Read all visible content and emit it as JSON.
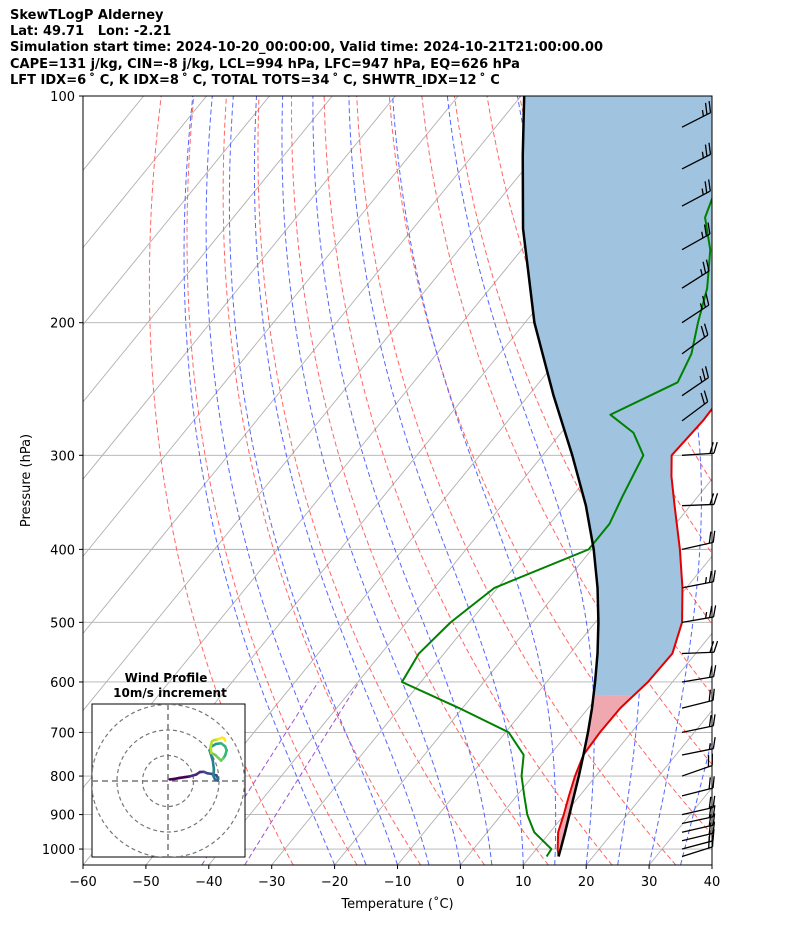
{
  "header": {
    "line1": "SkewTLogP Alderney",
    "line2": "Lat: 49.71   Lon: -2.21",
    "line3": "Simulation start time: 2024-10-20_00:00:00, Valid time: 2024-10-21T21:00:00.00",
    "line4": "CAPE=131 j/kg, CIN=-8 j/kg, LCL=994 hPa, LFC=947 hPa, EQ=626 hPa",
    "line5": "LFT IDX=6 ˚ C, K IDX=8 ˚ C, TOTAL TOTS=34 ˚ C, SHWTR_IDX=12 ˚ C"
  },
  "chart_data": [
    {
      "type": "line",
      "subtype": "skew-T log-P diagram",
      "xlabel": "Temperature (˚C)",
      "ylabel": "Pressure (hPa)",
      "xlim": [
        -60,
        40
      ],
      "ylim": [
        1050,
        100
      ],
      "y_scale": "log",
      "grid": true,
      "x_ticks": [
        "−60",
        "−50",
        "−40",
        "−30",
        "−20",
        "−10",
        "0",
        "10",
        "20",
        "30",
        "40"
      ],
      "y_ticks": [
        "100",
        "200",
        "300",
        "400",
        "500",
        "600",
        "700",
        "800",
        "900",
        "1000"
      ],
      "colors": {
        "temperature": "#e00000",
        "dewpoint": "#008000",
        "parcel": "#000000",
        "cape_fill": "#a0c4e0",
        "cin_fill": "#f0a8b0",
        "dry_adiabats": "#ff6666",
        "moist_adiabats": "#5566ff",
        "mixing_ratio": "#a050d0",
        "isotherms": "#b0b0b0"
      },
      "series": [
        {
          "key": "temperature",
          "points": [
            [
              1023,
              14.5
            ],
            [
              1000,
              13.4
            ],
            [
              950,
              11.3
            ],
            [
              900,
              9.9
            ],
            [
              850,
              8.3
            ],
            [
              800,
              6.7
            ],
            [
              750,
              5.3
            ],
            [
              700,
              5.0
            ],
            [
              650,
              5.1
            ],
            [
              600,
              6.1
            ],
            [
              550,
              6.3
            ],
            [
              500,
              3.8
            ],
            [
              450,
              -0.6
            ],
            [
              400,
              -6.0
            ],
            [
              350,
              -12.5
            ],
            [
              320,
              -16.8
            ],
            [
              300,
              -19.5
            ],
            [
              270,
              -19.0
            ],
            [
              250,
              -19.2
            ],
            [
              220,
              -21.5
            ],
            [
              200,
              -24.5
            ],
            [
              180,
              -26.5
            ],
            [
              160,
              -28.5
            ],
            [
              140,
              -33.5
            ],
            [
              125,
              -38.0
            ],
            [
              110,
              -42.0
            ],
            [
              100,
              -45.5
            ]
          ]
        },
        {
          "key": "dewpoint",
          "points": [
            [
              1023,
              12.6
            ],
            [
              1000,
              12.4
            ],
            [
              950,
              7.5
            ],
            [
              900,
              4.1
            ],
            [
              850,
              1.2
            ],
            [
              800,
              -1.8
            ],
            [
              750,
              -4.2
            ],
            [
              700,
              -9.5
            ],
            [
              650,
              -20.5
            ],
            [
              600,
              -33.0
            ],
            [
              550,
              -34.0
            ],
            [
              500,
              -33.0
            ],
            [
              450,
              -30.5
            ],
            [
              400,
              -20.5
            ],
            [
              370,
              -20.5
            ],
            [
              340,
              -22.0
            ],
            [
              300,
              -24.0
            ],
            [
              280,
              -28.5
            ],
            [
              265,
              -34.5
            ],
            [
              240,
              -28.0
            ],
            [
              220,
              -29.5
            ],
            [
              200,
              -32.5
            ],
            [
              180,
              -35.5
            ],
            [
              160,
              -40.0
            ],
            [
              145,
              -45.0
            ],
            [
              130,
              -47.5
            ],
            [
              115,
              -50.5
            ],
            [
              100,
              -53.0
            ]
          ]
        },
        {
          "key": "parcel",
          "points": [
            [
              1023,
              14.5
            ],
            [
              994,
              13.7
            ],
            [
              950,
              12.4
            ],
            [
              900,
              10.8
            ],
            [
              850,
              9.1
            ],
            [
              800,
              7.3
            ],
            [
              750,
              5.3
            ],
            [
              700,
              3.1
            ],
            [
              650,
              0.6
            ],
            [
              600,
              -2.3
            ],
            [
              550,
              -5.6
            ],
            [
              500,
              -9.5
            ],
            [
              450,
              -14.1
            ],
            [
              400,
              -19.7
            ],
            [
              350,
              -26.6
            ],
            [
              300,
              -35.3
            ],
            [
              250,
              -46.0
            ],
            [
              200,
              -58.5
            ],
            [
              150,
              -72.5
            ],
            [
              120,
              -82.0
            ],
            [
              100,
              -89.5
            ]
          ]
        }
      ],
      "wind_barbs": [
        {
          "p": 1023,
          "u": -11.8,
          "v": -3.7
        },
        {
          "p": 1000,
          "u": -12.4,
          "v": -3.3
        },
        {
          "p": 975,
          "u": -12.5,
          "v": -3.0
        },
        {
          "p": 950,
          "u": -12.2,
          "v": -2.8
        },
        {
          "p": 925,
          "u": -11.5,
          "v": -2.5
        },
        {
          "p": 900,
          "u": -11.0,
          "v": -2.5
        },
        {
          "p": 850,
          "u": -11.0,
          "v": -2.8
        },
        {
          "p": 800,
          "u": -10.0,
          "v": -3.5
        },
        {
          "p": 750,
          "u": -10.0,
          "v": -2.0
        },
        {
          "p": 700,
          "u": -12.0,
          "v": -2.5
        },
        {
          "p": 650,
          "u": -12.0,
          "v": -3.0
        },
        {
          "p": 600,
          "u": -12.0,
          "v": -2.0
        },
        {
          "p": 550,
          "u": -12.5,
          "v": -0.5
        },
        {
          "p": 500,
          "u": -12.8,
          "v": -2.2
        },
        {
          "p": 450,
          "u": -12.8,
          "v": -2.5
        },
        {
          "p": 400,
          "u": -12.5,
          "v": -2.8
        },
        {
          "p": 350,
          "u": -12.5,
          "v": -0.5
        },
        {
          "p": 300,
          "u": -12.5,
          "v": -0.8
        },
        {
          "p": 270,
          "u": -10.2,
          "v": -7.6
        },
        {
          "p": 250,
          "u": -10.7,
          "v": -7.3
        },
        {
          "p": 220,
          "u": -10.1,
          "v": -7.4
        },
        {
          "p": 200,
          "u": -10.8,
          "v": -7.1
        },
        {
          "p": 180,
          "u": -11.0,
          "v": -7.0
        },
        {
          "p": 160,
          "u": -11.6,
          "v": -6.5
        },
        {
          "p": 140,
          "u": -11.7,
          "v": -6.2
        },
        {
          "p": 125,
          "u": -11.7,
          "v": -6.0
        },
        {
          "p": 110,
          "u": -11.8,
          "v": -6.0
        }
      ]
    },
    {
      "type": "line",
      "subtype": "hodograph",
      "title": "Wind Profile",
      "subtitle": "10m/s increment",
      "ring_increment": 10,
      "rings": 3,
      "points": [
        [
          0.7,
          0.6
        ],
        [
          2.5,
          0.8
        ],
        [
          4.5,
          1.2
        ],
        [
          6.5,
          1.5
        ],
        [
          8.5,
          1.8
        ],
        [
          11.0,
          2.5
        ],
        [
          12.5,
          3.5
        ],
        [
          14.0,
          3.6
        ],
        [
          15.5,
          3.0
        ],
        [
          17.0,
          2.8
        ],
        [
          19.0,
          2.2
        ],
        [
          19.5,
          1.2
        ],
        [
          19.5,
          0.2
        ],
        [
          18.5,
          0.4
        ],
        [
          17.8,
          2.0
        ],
        [
          18.0,
          4.5
        ],
        [
          17.6,
          7.8
        ],
        [
          16.8,
          10.5
        ],
        [
          16.3,
          12.0
        ],
        [
          17.0,
          13.5
        ],
        [
          18.8,
          14.5
        ],
        [
          20.8,
          14.8
        ],
        [
          22.4,
          13.6
        ],
        [
          23.0,
          12.0
        ],
        [
          22.4,
          10.0
        ],
        [
          21.6,
          8.8
        ],
        [
          20.8,
          8.0
        ],
        [
          18.5,
          10.2
        ],
        [
          17.0,
          11.0
        ],
        [
          16.7,
          13.5
        ],
        [
          17.2,
          15.5
        ],
        [
          18.0,
          16.0
        ],
        [
          19.5,
          16.3
        ],
        [
          21.2,
          17.0
        ],
        [
          22.1,
          16.6
        ],
        [
          22.4,
          15.8
        ]
      ]
    }
  ]
}
